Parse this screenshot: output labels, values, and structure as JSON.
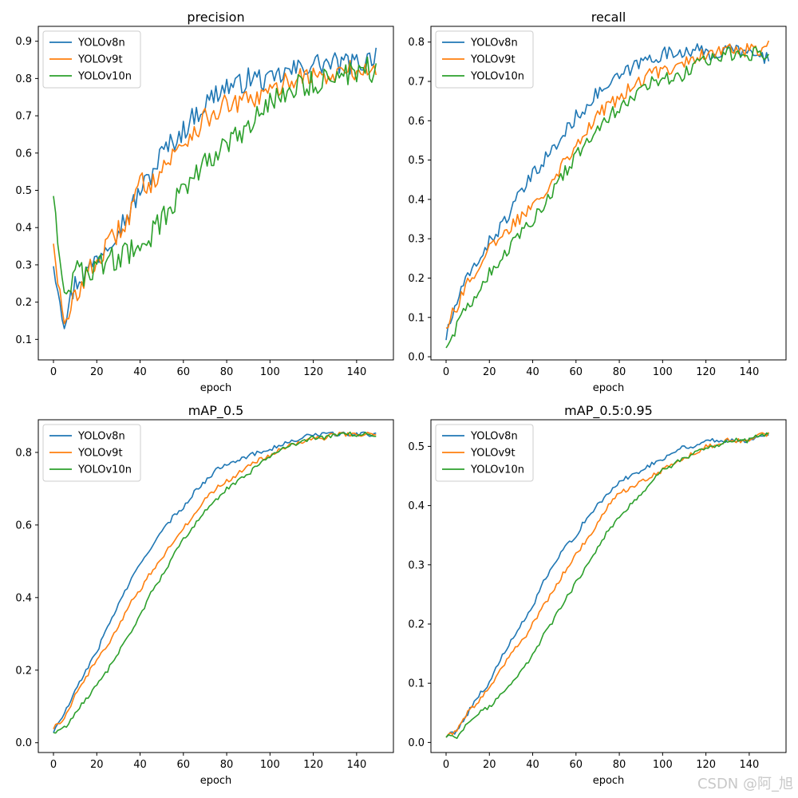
{
  "chart_data": [
    {
      "type": "line",
      "title": "precision",
      "xlabel": "epoch",
      "ylabel": "",
      "xlim": [
        -7,
        157
      ],
      "ylim": [
        0.045,
        0.94
      ],
      "xticks": [
        0,
        20,
        40,
        60,
        80,
        100,
        120,
        140
      ],
      "xtick_labels": [
        "0",
        "20",
        "40",
        "60",
        "80",
        "100",
        "120",
        "140"
      ],
      "yticks": [
        0.1,
        0.2,
        0.3,
        0.4,
        0.5,
        0.6,
        0.7,
        0.8,
        0.9
      ],
      "ytick_labels": [
        "0.1",
        "0.2",
        "0.3",
        "0.4",
        "0.5",
        "0.6",
        "0.7",
        "0.8",
        "0.9"
      ],
      "legend": "top-left",
      "x": [
        0,
        5,
        10,
        15,
        20,
        25,
        30,
        35,
        40,
        45,
        50,
        55,
        60,
        65,
        70,
        75,
        80,
        85,
        90,
        95,
        100,
        105,
        110,
        115,
        120,
        125,
        130,
        135,
        140,
        145,
        149
      ],
      "series": [
        {
          "name": "YOLOv8n",
          "color": "#1f77b4",
          "noise": 0.03,
          "values": [
            0.31,
            0.15,
            0.25,
            0.28,
            0.32,
            0.36,
            0.4,
            0.44,
            0.5,
            0.54,
            0.6,
            0.63,
            0.66,
            0.7,
            0.73,
            0.76,
            0.78,
            0.78,
            0.8,
            0.8,
            0.79,
            0.81,
            0.82,
            0.83,
            0.84,
            0.84,
            0.84,
            0.84,
            0.84,
            0.85,
            0.87
          ]
        },
        {
          "name": "YOLOv9t",
          "color": "#ff7f0e",
          "noise": 0.03,
          "values": [
            0.37,
            0.12,
            0.22,
            0.27,
            0.31,
            0.35,
            0.39,
            0.43,
            0.52,
            0.52,
            0.56,
            0.59,
            0.63,
            0.66,
            0.69,
            0.71,
            0.73,
            0.73,
            0.74,
            0.75,
            0.76,
            0.78,
            0.8,
            0.81,
            0.81,
            0.8,
            0.81,
            0.82,
            0.82,
            0.82,
            0.82
          ]
        },
        {
          "name": "YOLOv10n",
          "color": "#2ca02c",
          "noise": 0.035,
          "values": [
            0.5,
            0.22,
            0.28,
            0.27,
            0.3,
            0.31,
            0.32,
            0.33,
            0.35,
            0.38,
            0.42,
            0.46,
            0.5,
            0.55,
            0.58,
            0.6,
            0.62,
            0.64,
            0.66,
            0.7,
            0.74,
            0.76,
            0.77,
            0.78,
            0.79,
            0.8,
            0.8,
            0.81,
            0.82,
            0.83,
            0.81
          ]
        }
      ]
    },
    {
      "type": "line",
      "title": "recall",
      "xlabel": "epoch",
      "ylabel": "",
      "xlim": [
        -7,
        157
      ],
      "ylim": [
        -0.008,
        0.84
      ],
      "xticks": [
        0,
        20,
        40,
        60,
        80,
        100,
        120,
        140
      ],
      "xtick_labels": [
        "0",
        "20",
        "40",
        "60",
        "80",
        "100",
        "120",
        "140"
      ],
      "yticks": [
        0.0,
        0.1,
        0.2,
        0.3,
        0.4,
        0.5,
        0.6,
        0.7,
        0.8
      ],
      "ytick_labels": [
        "0.0",
        "0.1",
        "0.2",
        "0.3",
        "0.4",
        "0.5",
        "0.6",
        "0.7",
        "0.8"
      ],
      "legend": "top-left",
      "x": [
        0,
        5,
        10,
        15,
        20,
        25,
        30,
        35,
        40,
        45,
        50,
        55,
        60,
        65,
        70,
        75,
        80,
        85,
        90,
        95,
        100,
        105,
        110,
        115,
        120,
        125,
        130,
        135,
        140,
        145,
        149
      ],
      "series": [
        {
          "name": "YOLOv8n",
          "color": "#1f77b4",
          "noise": 0.018,
          "values": [
            0.05,
            0.14,
            0.2,
            0.25,
            0.29,
            0.33,
            0.37,
            0.42,
            0.46,
            0.5,
            0.53,
            0.57,
            0.61,
            0.64,
            0.67,
            0.69,
            0.71,
            0.73,
            0.75,
            0.76,
            0.77,
            0.77,
            0.78,
            0.78,
            0.77,
            0.77,
            0.78,
            0.78,
            0.77,
            0.76,
            0.76
          ]
        },
        {
          "name": "YOLOv9t",
          "color": "#ff7f0e",
          "noise": 0.018,
          "values": [
            0.08,
            0.13,
            0.19,
            0.23,
            0.27,
            0.3,
            0.33,
            0.36,
            0.39,
            0.42,
            0.46,
            0.5,
            0.54,
            0.58,
            0.61,
            0.64,
            0.66,
            0.68,
            0.7,
            0.72,
            0.73,
            0.74,
            0.75,
            0.76,
            0.77,
            0.78,
            0.78,
            0.78,
            0.78,
            0.78,
            0.79
          ]
        },
        {
          "name": "YOLOv10n",
          "color": "#2ca02c",
          "noise": 0.018,
          "values": [
            0.03,
            0.08,
            0.13,
            0.17,
            0.21,
            0.25,
            0.28,
            0.32,
            0.35,
            0.39,
            0.43,
            0.47,
            0.51,
            0.55,
            0.58,
            0.61,
            0.63,
            0.66,
            0.68,
            0.7,
            0.71,
            0.71,
            0.72,
            0.74,
            0.75,
            0.76,
            0.77,
            0.77,
            0.77,
            0.77,
            0.77
          ]
        }
      ]
    },
    {
      "type": "line",
      "title": "mAP_0.5",
      "xlabel": "epoch",
      "ylabel": "",
      "xlim": [
        -7,
        157
      ],
      "ylim": [
        -0.027,
        0.89
      ],
      "xticks": [
        0,
        20,
        40,
        60,
        80,
        100,
        120,
        140
      ],
      "xtick_labels": [
        "0",
        "20",
        "40",
        "60",
        "80",
        "100",
        "120",
        "140"
      ],
      "yticks": [
        0.0,
        0.2,
        0.4,
        0.6,
        0.8
      ],
      "ytick_labels": [
        "0.0",
        "0.2",
        "0.4",
        "0.6",
        "0.8"
      ],
      "legend": "top-left",
      "x": [
        0,
        5,
        10,
        15,
        20,
        25,
        30,
        35,
        40,
        45,
        50,
        55,
        60,
        65,
        70,
        75,
        80,
        85,
        90,
        95,
        100,
        105,
        110,
        115,
        120,
        125,
        130,
        135,
        140,
        145,
        149
      ],
      "series": [
        {
          "name": "YOLOv8n",
          "color": "#1f77b4",
          "noise": 0.006,
          "values": [
            0.03,
            0.08,
            0.14,
            0.2,
            0.25,
            0.32,
            0.38,
            0.44,
            0.49,
            0.54,
            0.58,
            0.62,
            0.65,
            0.69,
            0.72,
            0.75,
            0.77,
            0.78,
            0.79,
            0.8,
            0.81,
            0.82,
            0.83,
            0.84,
            0.85,
            0.85,
            0.85,
            0.85,
            0.85,
            0.85,
            0.85
          ]
        },
        {
          "name": "YOLOv9t",
          "color": "#ff7f0e",
          "noise": 0.006,
          "values": [
            0.04,
            0.07,
            0.13,
            0.18,
            0.23,
            0.27,
            0.32,
            0.38,
            0.42,
            0.47,
            0.51,
            0.55,
            0.59,
            0.63,
            0.67,
            0.7,
            0.72,
            0.74,
            0.76,
            0.78,
            0.79,
            0.81,
            0.82,
            0.83,
            0.84,
            0.84,
            0.85,
            0.85,
            0.85,
            0.85,
            0.85
          ]
        },
        {
          "name": "YOLOv10n",
          "color": "#2ca02c",
          "noise": 0.006,
          "values": [
            0.03,
            0.04,
            0.08,
            0.12,
            0.16,
            0.2,
            0.25,
            0.3,
            0.35,
            0.41,
            0.46,
            0.51,
            0.56,
            0.6,
            0.64,
            0.67,
            0.7,
            0.72,
            0.74,
            0.77,
            0.79,
            0.81,
            0.82,
            0.83,
            0.84,
            0.84,
            0.85,
            0.85,
            0.85,
            0.85,
            0.85
          ]
        }
      ]
    },
    {
      "type": "line",
      "title": "mAP_0.5:0.95",
      "xlabel": "epoch",
      "ylabel": "",
      "xlim": [
        -7,
        157
      ],
      "ylim": [
        -0.017,
        0.545
      ],
      "xticks": [
        0,
        20,
        40,
        60,
        80,
        100,
        120,
        140
      ],
      "xtick_labels": [
        "0",
        "20",
        "40",
        "60",
        "80",
        "100",
        "120",
        "140"
      ],
      "yticks": [
        0.0,
        0.1,
        0.2,
        0.3,
        0.4,
        0.5
      ],
      "ytick_labels": [
        "0.0",
        "0.1",
        "0.2",
        "0.3",
        "0.4",
        "0.5"
      ],
      "legend": "top-left",
      "x": [
        0,
        5,
        10,
        15,
        20,
        25,
        30,
        35,
        40,
        45,
        50,
        55,
        60,
        65,
        70,
        75,
        80,
        85,
        90,
        95,
        100,
        105,
        110,
        115,
        120,
        125,
        130,
        135,
        140,
        145,
        149
      ],
      "series": [
        {
          "name": "YOLOv8n",
          "color": "#1f77b4",
          "noise": 0.004,
          "values": [
            0.01,
            0.02,
            0.05,
            0.08,
            0.1,
            0.14,
            0.17,
            0.2,
            0.23,
            0.27,
            0.3,
            0.33,
            0.35,
            0.38,
            0.4,
            0.42,
            0.44,
            0.45,
            0.46,
            0.47,
            0.48,
            0.49,
            0.5,
            0.5,
            0.51,
            0.51,
            0.51,
            0.51,
            0.51,
            0.52,
            0.52
          ]
        },
        {
          "name": "YOLOv9t",
          "color": "#ff7f0e",
          "noise": 0.004,
          "values": [
            0.01,
            0.02,
            0.05,
            0.07,
            0.09,
            0.12,
            0.15,
            0.17,
            0.2,
            0.23,
            0.26,
            0.29,
            0.32,
            0.34,
            0.37,
            0.4,
            0.42,
            0.43,
            0.44,
            0.45,
            0.46,
            0.47,
            0.48,
            0.49,
            0.5,
            0.5,
            0.51,
            0.51,
            0.51,
            0.52,
            0.52
          ]
        },
        {
          "name": "YOLOv10n",
          "color": "#2ca02c",
          "noise": 0.004,
          "values": [
            0.01,
            0.01,
            0.03,
            0.05,
            0.06,
            0.08,
            0.1,
            0.12,
            0.15,
            0.18,
            0.21,
            0.24,
            0.27,
            0.3,
            0.33,
            0.36,
            0.38,
            0.4,
            0.42,
            0.44,
            0.46,
            0.47,
            0.48,
            0.49,
            0.5,
            0.5,
            0.51,
            0.51,
            0.51,
            0.52,
            0.52
          ]
        }
      ]
    }
  ],
  "watermark": "CSDN @阿_旭"
}
